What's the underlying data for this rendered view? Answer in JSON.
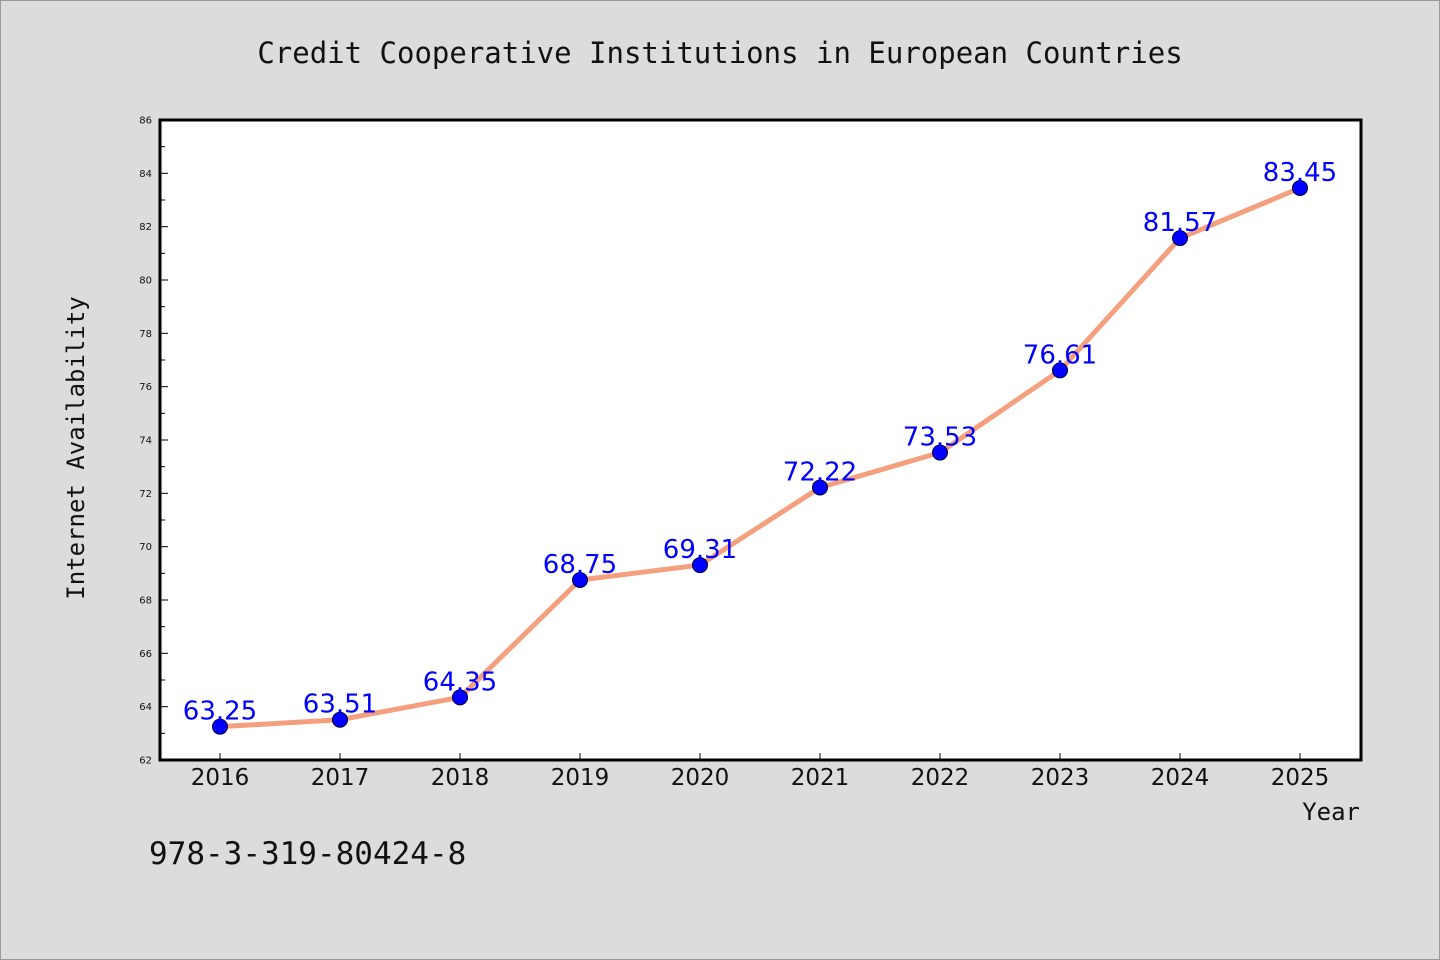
{
  "footnote": "978-3-319-80424-8",
  "colors": {
    "background": "#dcdcdc",
    "plot_background": "#ffffff",
    "line": "#f4a07e",
    "marker": "#0000ff",
    "data_label": "#0000ff",
    "text": "#111111"
  },
  "chart_data": {
    "type": "line",
    "title": "Credit Cooperative Institutions in European Countries",
    "xlabel": "Year",
    "ylabel": "Internet Availability",
    "categories": [
      "2016",
      "2017",
      "2018",
      "2019",
      "2020",
      "2021",
      "2022",
      "2023",
      "2024",
      "2025"
    ],
    "series": [
      {
        "values": [
          63.25,
          63.51,
          64.35,
          68.75,
          69.31,
          72.22,
          73.53,
          76.61,
          81.57,
          83.45
        ],
        "labels": [
          "63.25",
          "63.51",
          "64.35",
          "68.75",
          "69.31",
          "72.22",
          "73.53",
          "76.61",
          "81.57",
          "83.45"
        ]
      }
    ],
    "ylim": [
      62,
      86
    ],
    "yticks": [
      62,
      64,
      66,
      68,
      70,
      72,
      74,
      76,
      78,
      80,
      82,
      84,
      86
    ],
    "ytick_labels": [
      "62",
      "64",
      "66",
      "68",
      "70",
      "72",
      "74",
      "76",
      "78",
      "80",
      "82",
      "84",
      "86"
    ],
    "grid": false,
    "legend": false,
    "marker": "circle"
  }
}
